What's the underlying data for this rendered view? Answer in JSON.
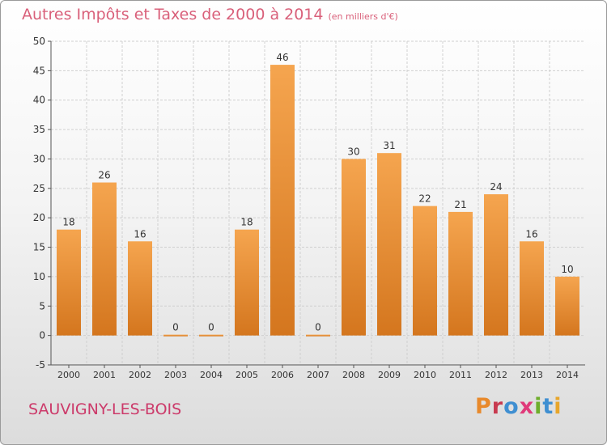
{
  "header": {
    "title": "Autres Impôts et Taxes de 2000 à 2014",
    "subtitle": "(en milliers d'€)"
  },
  "footer": {
    "commune": "SAUVIGNY-LES-BOIS",
    "logo_text": "Proxiti"
  },
  "colors": {
    "bar_light": "#f5a54f",
    "bar_dark": "#d4761e",
    "title": "#d9607a",
    "commune": "#cc3a6a"
  },
  "chart_data": {
    "type": "bar",
    "categories": [
      "2000",
      "2001",
      "2002",
      "2003",
      "2004",
      "2005",
      "2006",
      "2007",
      "2008",
      "2009",
      "2010",
      "2011",
      "2012",
      "2013",
      "2014"
    ],
    "values": [
      18,
      26,
      16,
      0,
      0,
      18,
      46,
      0,
      30,
      31,
      22,
      21,
      24,
      16,
      10
    ],
    "title": "Autres Impôts et Taxes de 2000 à 2014",
    "subtitle": "(en milliers d'€)",
    "ylim": [
      -5,
      50
    ],
    "yticks": [
      -5,
      0,
      5,
      10,
      15,
      20,
      25,
      30,
      35,
      40,
      45,
      50
    ],
    "grid": true,
    "data_labels": true
  }
}
